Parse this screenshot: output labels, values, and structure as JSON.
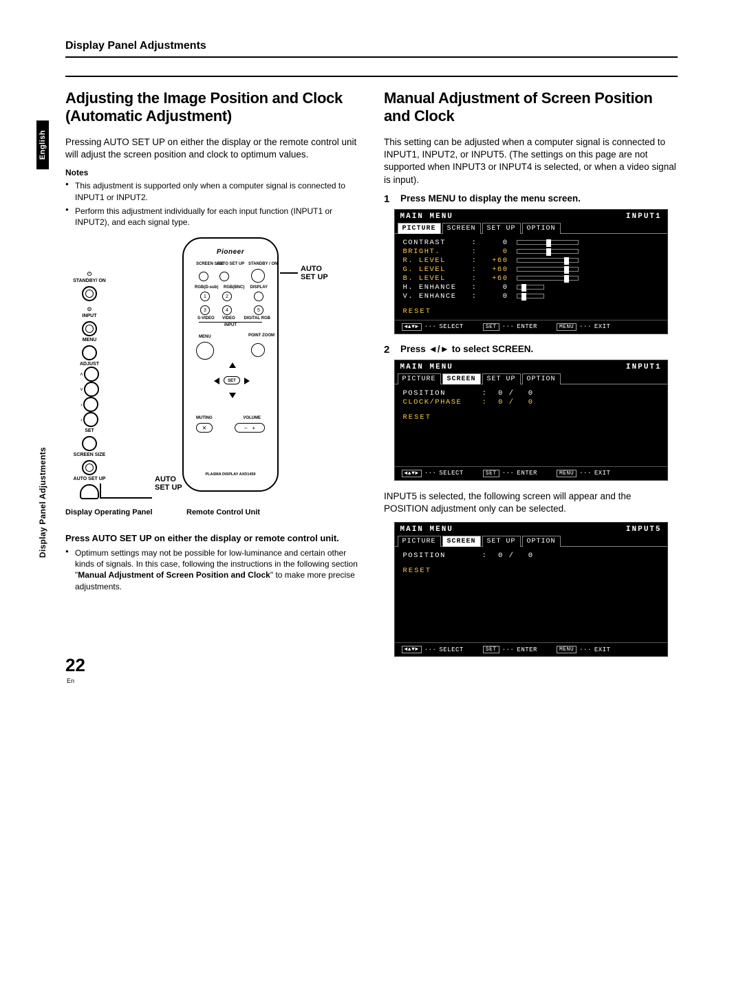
{
  "header": {
    "title": "Display Panel Adjustments"
  },
  "sidebar": {
    "language": "English",
    "section": "Display Panel Adjustments"
  },
  "left": {
    "title": "Adjusting the Image Position and Clock (Automatic Adjustment)",
    "intro": "Pressing AUTO SET UP on either the display or the remote control unit will adjust the screen position and clock to optimum values.",
    "notes_label": "Notes",
    "note1": "This adjustment is supported only when a computer signal is connected to INPUT1 or INPUT2.",
    "note2": "Perform this adjustment individually for each input function (INPUT1 or INPUT2), and each signal type.",
    "diagram": {
      "brand": "Pioneer",
      "callout_top": "AUTO\nSET UP",
      "callout_bottom": "AUTO\nSET UP",
      "panel_labels": {
        "standby": "STANDBY/ ON",
        "input": "INPUT",
        "menu": "MENU",
        "adjust": "ADJUST",
        "set": "SET",
        "screen_size": "SCREEN SIZE",
        "auto_setup": "AUTO SET UP"
      },
      "remote_labels": {
        "screen_size": "SCREEN\nSIZE",
        "auto_setup": "AUTO\nSET UP",
        "standby_on": "STANDBY\n/ ON",
        "rgb1": "RGB(D-sub)",
        "rgb2": "RGB(BNC)",
        "display": "DISPLAY",
        "svideo": "S-VIDEO",
        "video": "VIDEO",
        "digital": "DIGITAL RGB",
        "input": "INPUT",
        "menu": "MENU",
        "point_zoom": "POINT\nZOOM",
        "set": "SET",
        "muting": "MUTING",
        "volume": "VOLUME",
        "model": "PLASMA DISPLAY   AXD1459"
      },
      "panel_caption": "Display Operating Panel",
      "remote_caption": "Remote Control Unit"
    },
    "instr_head": "Press AUTO SET UP on either the display or remote control unit.",
    "bullet_after_a": "Optimum settings may not be possible for low-luminance and certain other kinds of signals. In this case, following the instructions in the following section \"",
    "bullet_after_bold": "Manual Adjustment of Screen Position and Clock",
    "bullet_after_b": "\" to make more precise adjustments."
  },
  "right": {
    "title": "Manual Adjustment of Screen Position and Clock",
    "intro": "This setting can be adjusted when a computer signal is connected to INPUT1, INPUT2, or INPUT5. (The settings on this page are not supported when INPUT3 or INPUT4 is selected, or when a video signal is input).",
    "step1": {
      "num": "1",
      "text": "Press MENU to display the menu screen."
    },
    "step2": {
      "num": "2",
      "text": "Press ◄/► to select SCREEN."
    },
    "note_between": "INPUT5 is selected, the following screen will appear and the POSITION adjustment only can be selected.",
    "osd_common": {
      "main": "MAIN MENU",
      "tabs": {
        "picture": "PICTURE",
        "screen": "SCREEN",
        "setup": "SET UP",
        "option": "OPTION"
      },
      "footer": {
        "select": "SELECT",
        "set": "SET",
        "enter": "ENTER",
        "menu": "MENU",
        "exit": "EXIT"
      },
      "reset": "RESET"
    },
    "osd1": {
      "input": "INPUT1",
      "rows": [
        {
          "label": "CONTRAST",
          "val": "0",
          "thumb": 42,
          "hl": false
        },
        {
          "label": "BRIGHT.",
          "val": "0",
          "thumb": 42,
          "hl": true
        },
        {
          "label": "R. LEVEL",
          "val": "+60",
          "thumb": 68,
          "hl": true
        },
        {
          "label": "G. LEVEL",
          "val": "+60",
          "thumb": 68,
          "hl": true
        },
        {
          "label": "B. LEVEL",
          "val": "+60",
          "thumb": 68,
          "hl": true
        },
        {
          "label": "H. ENHANCE",
          "val": "0",
          "thumb": 6,
          "hl": false,
          "short": true
        },
        {
          "label": "V. ENHANCE",
          "val": "0",
          "thumb": 6,
          "hl": false,
          "short": true
        }
      ]
    },
    "osd2": {
      "input": "INPUT1",
      "rows": [
        {
          "label": "POSITION",
          "sep": ":",
          "v1": "0 /",
          "v2": "0",
          "hl": false
        },
        {
          "label": "CLOCK/PHASE",
          "sep": ":",
          "v1": "0 /",
          "v2": "0",
          "hl": true
        }
      ]
    },
    "osd3": {
      "input": "INPUT5",
      "rows": [
        {
          "label": "POSITION",
          "sep": ":",
          "v1": "0 /",
          "v2": "0",
          "hl": false
        }
      ]
    }
  },
  "footer": {
    "page": "22",
    "lang": "En"
  }
}
